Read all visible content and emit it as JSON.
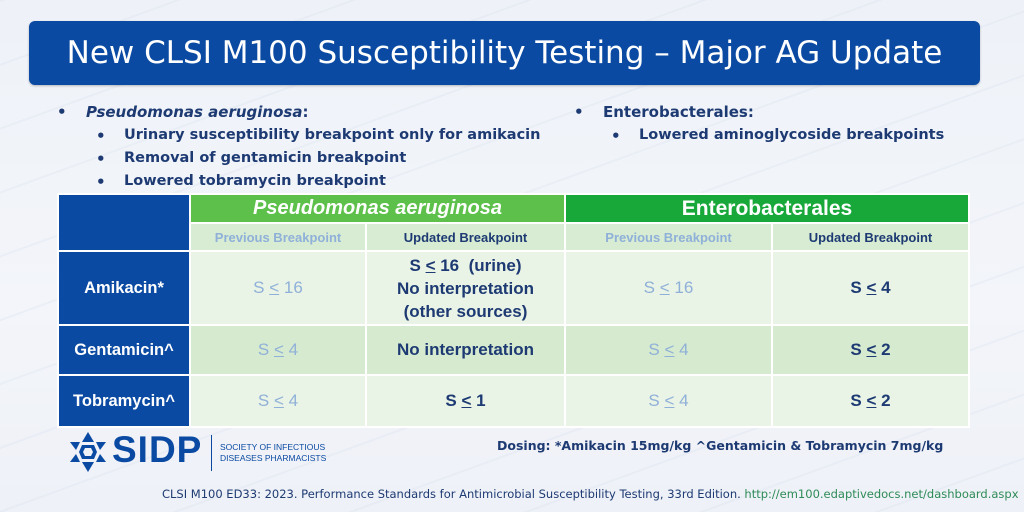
{
  "title": "New CLSI M100 Susceptibility Testing – Major AG Update",
  "bullets": {
    "left": {
      "heading": "Pseudomonas  aeruginosa",
      "heading_suffix": ":",
      "items": [
        "Urinary susceptibility breakpoint only for amikacin",
        "Removal of gentamicin breakpoint",
        "Lowered tobramycin breakpoint"
      ]
    },
    "right": {
      "heading": "Enterobacterales:",
      "items": [
        "Lowered aminoglycoside breakpoints"
      ]
    }
  },
  "table": {
    "groups": [
      "Pseudomonas  aeruginosa",
      "Enterobacterales"
    ],
    "subheaders": [
      "Previous Breakpoint",
      "Updated Breakpoint",
      "Previous Breakpoint",
      "Updated Breakpoint"
    ],
    "rows": [
      {
        "drug": "Amikacin*",
        "ps_prev": {
          "pre": "S ",
          "u": "<",
          "post": " 16"
        },
        "ps_upd_lines": [
          "(urine)",
          "No interpretation",
          "(other sources)"
        ],
        "ps_upd_first": {
          "pre": "S ",
          "u": "<",
          "post": " 16"
        },
        "en_prev": {
          "pre": "S ",
          "u": "<",
          "post": " 16"
        },
        "en_upd": {
          "pre": "S ",
          "u": "<",
          "post": " 4"
        }
      },
      {
        "drug": "Gentamicin^",
        "ps_prev": {
          "pre": "S ",
          "u": "<",
          "post": " 4"
        },
        "ps_upd_text": "No interpretation",
        "en_prev": {
          "pre": "S ",
          "u": "<",
          "post": " 4"
        },
        "en_upd": {
          "pre": "S ",
          "u": "<",
          "post": " 2"
        }
      },
      {
        "drug": "Tobramycin^",
        "ps_prev": {
          "pre": "S ",
          "u": "<",
          "post": " 4"
        },
        "ps_upd": {
          "pre": "S ",
          "u": "<",
          "post": " 1"
        },
        "en_prev": {
          "pre": "S ",
          "u": "<",
          "post": " 4"
        },
        "en_upd": {
          "pre": "S ",
          "u": "<",
          "post": " 2"
        }
      }
    ]
  },
  "dosing": "Dosing: *Amikacin 15mg/kg   ^Gentamicin & Tobramycin 7mg/kg",
  "logo": {
    "name": "SIDP",
    "subtitle_lines": [
      "SOCIETY OF INFECTIOUS",
      "DISEASES PHARMACISTS"
    ]
  },
  "citation": {
    "text": "CLSI M100 ED33: 2023. Performance Standards for Antimicrobial Susceptibility Testing, 33rd Edition.",
    "link": "http://em100.edaptivedocs.net/dashboard.aspx"
  },
  "colors": {
    "brand_blue": "#0b4aa2",
    "pseudomonas_green": "#5cc04a",
    "enterobacterales_green": "#18a83a",
    "text_navy": "#1d3a73",
    "previous_gray_blue": "#8fb0d8"
  }
}
